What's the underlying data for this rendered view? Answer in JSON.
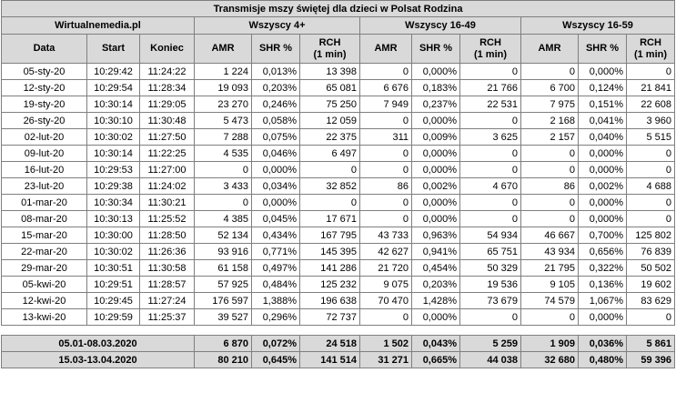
{
  "title": "Transmisje mszy świętej dla dzieci w Polsat Rodzina",
  "source": "Wirtualnemedia.pl",
  "groups": [
    "Wszyscy 4+",
    "Wszyscy 16-49",
    "Wszyscy 16-59"
  ],
  "headers": {
    "date": "Data",
    "start": "Start",
    "end": "Koniec",
    "amr": "AMR",
    "shr": "SHR %",
    "rch_line1": "RCH",
    "rch_line2": "(1 min)"
  },
  "rows": [
    [
      "05-sty-20",
      "10:29:42",
      "11:24:22",
      "1 224",
      "0,013%",
      "13 398",
      "0",
      "0,000%",
      "0",
      "0",
      "0,000%",
      "0"
    ],
    [
      "12-sty-20",
      "10:29:54",
      "11:28:34",
      "19 093",
      "0,203%",
      "65 081",
      "6 676",
      "0,183%",
      "21 766",
      "6 700",
      "0,124%",
      "21 841"
    ],
    [
      "19-sty-20",
      "10:30:14",
      "11:29:05",
      "23 270",
      "0,246%",
      "75 250",
      "7 949",
      "0,237%",
      "22 531",
      "7 975",
      "0,151%",
      "22 608"
    ],
    [
      "26-sty-20",
      "10:30:10",
      "11:30:48",
      "5 473",
      "0,058%",
      "12 059",
      "0",
      "0,000%",
      "0",
      "2 168",
      "0,041%",
      "3 960"
    ],
    [
      "02-lut-20",
      "10:30:02",
      "11:27:50",
      "7 288",
      "0,075%",
      "22 375",
      "311",
      "0,009%",
      "3 625",
      "2 157",
      "0,040%",
      "5 515"
    ],
    [
      "09-lut-20",
      "10:30:14",
      "11:22:25",
      "4 535",
      "0,046%",
      "6 497",
      "0",
      "0,000%",
      "0",
      "0",
      "0,000%",
      "0"
    ],
    [
      "16-lut-20",
      "10:29:53",
      "11:27:00",
      "0",
      "0,000%",
      "0",
      "0",
      "0,000%",
      "0",
      "0",
      "0,000%",
      "0"
    ],
    [
      "23-lut-20",
      "10:29:38",
      "11:24:02",
      "3 433",
      "0,034%",
      "32 852",
      "86",
      "0,002%",
      "4 670",
      "86",
      "0,002%",
      "4 688"
    ],
    [
      "01-mar-20",
      "10:30:34",
      "11:30:21",
      "0",
      "0,000%",
      "0",
      "0",
      "0,000%",
      "0",
      "0",
      "0,000%",
      "0"
    ],
    [
      "08-mar-20",
      "10:30:13",
      "11:25:52",
      "4 385",
      "0,045%",
      "17 671",
      "0",
      "0,000%",
      "0",
      "0",
      "0,000%",
      "0"
    ],
    [
      "15-mar-20",
      "10:30:00",
      "11:28:50",
      "52 134",
      "0,434%",
      "167 795",
      "43 733",
      "0,963%",
      "54 934",
      "46 667",
      "0,700%",
      "125 802"
    ],
    [
      "22-mar-20",
      "10:30:02",
      "11:26:36",
      "93 916",
      "0,771%",
      "145 395",
      "42 627",
      "0,941%",
      "65 751",
      "43 934",
      "0,656%",
      "76 839"
    ],
    [
      "29-mar-20",
      "10:30:51",
      "11:30:58",
      "61 158",
      "0,497%",
      "141 286",
      "21 720",
      "0,454%",
      "50 329",
      "21 795",
      "0,322%",
      "50 502"
    ],
    [
      "05-kwi-20",
      "10:29:51",
      "11:28:57",
      "57 925",
      "0,484%",
      "125 232",
      "9 075",
      "0,203%",
      "19 536",
      "9 105",
      "0,136%",
      "19 602"
    ],
    [
      "12-kwi-20",
      "10:29:45",
      "11:27:24",
      "176 597",
      "1,388%",
      "196 638",
      "70 470",
      "1,428%",
      "73 679",
      "74 579",
      "1,067%",
      "83 629"
    ],
    [
      "13-kwi-20",
      "10:29:59",
      "11:25:37",
      "39 527",
      "0,296%",
      "72 737",
      "0",
      "0,000%",
      "0",
      "0",
      "0,000%",
      "0"
    ]
  ],
  "summary": [
    [
      "05.01-08.03.2020",
      "6 870",
      "0,072%",
      "24 518",
      "1 502",
      "0,043%",
      "5 259",
      "1 909",
      "0,036%",
      "5 861"
    ],
    [
      "15.03-13.04.2020",
      "80 210",
      "0,645%",
      "141 514",
      "31 271",
      "0,665%",
      "44 038",
      "32 680",
      "0,480%",
      "59 396"
    ]
  ]
}
